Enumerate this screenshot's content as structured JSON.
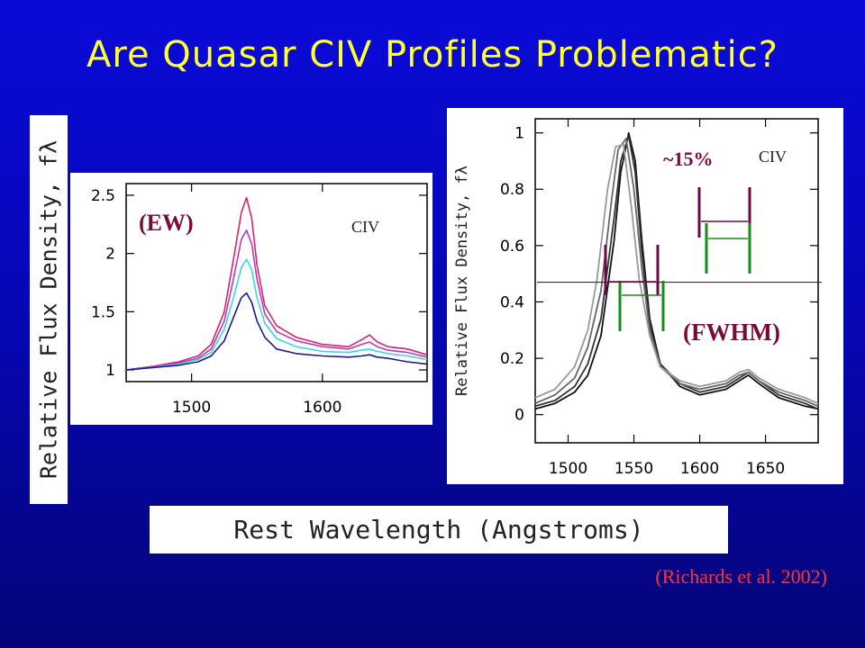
{
  "slide": {
    "title": "Are Quasar CIV Profiles Problematic?",
    "citation": "(Richards et al. 2002)",
    "shared_ylabel": "Relative Flux Density, fλ",
    "shared_xlabel": "Rest Wavelength (Angstroms)"
  },
  "colors": {
    "background": "#0707b8",
    "title": "#ffff33",
    "annotation": "#7a0a3a",
    "citation": "#ff3333",
    "marker_green": "#1a8a1a",
    "marker_purple": "#6a0a4a"
  },
  "chart_data": [
    {
      "type": "line",
      "title": "",
      "annotation": "(EW)",
      "line_label": "CIV",
      "xlabel": "",
      "ylabel": "",
      "xlim": [
        1450,
        1680
      ],
      "ylim": [
        0.9,
        2.6
      ],
      "xticks": [
        1500,
        1600
      ],
      "yticks": [
        1,
        1.5,
        2,
        2.5
      ],
      "ytick_labels": [
        "1",
        "1.5",
        "2",
        "2.5"
      ],
      "series": [
        {
          "color": "#e0206a",
          "x": [
            1450,
            1470,
            1490,
            1505,
            1515,
            1525,
            1532,
            1538,
            1542,
            1546,
            1550,
            1556,
            1565,
            1580,
            1600,
            1620,
            1630,
            1636,
            1642,
            1650,
            1665,
            1680
          ],
          "y": [
            1.0,
            1.03,
            1.07,
            1.12,
            1.22,
            1.5,
            1.95,
            2.35,
            2.48,
            2.3,
            1.9,
            1.55,
            1.38,
            1.28,
            1.22,
            1.2,
            1.26,
            1.3,
            1.24,
            1.2,
            1.18,
            1.13
          ]
        },
        {
          "color": "#b83ab8",
          "x": [
            1450,
            1470,
            1490,
            1505,
            1515,
            1525,
            1532,
            1538,
            1542,
            1546,
            1550,
            1556,
            1565,
            1580,
            1600,
            1620,
            1630,
            1636,
            1642,
            1650,
            1665,
            1680
          ],
          "y": [
            1.0,
            1.03,
            1.06,
            1.1,
            1.18,
            1.42,
            1.78,
            2.12,
            2.2,
            2.08,
            1.78,
            1.48,
            1.33,
            1.25,
            1.2,
            1.18,
            1.22,
            1.24,
            1.2,
            1.17,
            1.15,
            1.11
          ]
        },
        {
          "color": "#3ad8d8",
          "x": [
            1450,
            1470,
            1490,
            1505,
            1515,
            1525,
            1532,
            1538,
            1542,
            1546,
            1550,
            1556,
            1565,
            1580,
            1600,
            1620,
            1630,
            1636,
            1642,
            1650,
            1665,
            1680
          ],
          "y": [
            1.0,
            1.02,
            1.05,
            1.09,
            1.15,
            1.35,
            1.62,
            1.88,
            1.95,
            1.86,
            1.62,
            1.4,
            1.27,
            1.2,
            1.16,
            1.15,
            1.17,
            1.18,
            1.16,
            1.14,
            1.12,
            1.09
          ]
        },
        {
          "color": "#1a1a8a",
          "x": [
            1450,
            1470,
            1490,
            1505,
            1515,
            1525,
            1532,
            1538,
            1542,
            1546,
            1550,
            1556,
            1565,
            1580,
            1600,
            1620,
            1630,
            1636,
            1642,
            1650,
            1665,
            1680
          ],
          "y": [
            1.0,
            1.02,
            1.04,
            1.07,
            1.12,
            1.25,
            1.45,
            1.62,
            1.66,
            1.58,
            1.42,
            1.28,
            1.18,
            1.14,
            1.12,
            1.11,
            1.12,
            1.13,
            1.11,
            1.1,
            1.07,
            1.05
          ]
        }
      ]
    },
    {
      "type": "line",
      "title": "",
      "annotation": "(FWHM)",
      "percent_label": "~15%",
      "line_label": "CIV",
      "xlabel": "",
      "ylabel": "Relative Flux Density, fλ",
      "xlim": [
        1475,
        1690
      ],
      "ylim": [
        -0.1,
        1.05
      ],
      "xticks": [
        1500,
        1550,
        1600,
        1650
      ],
      "yticks": [
        0,
        0.2,
        0.4,
        0.6,
        0.8,
        1
      ],
      "ytick_labels": [
        "0",
        "0.2",
        "0.4",
        "0.6",
        "0.8",
        "1"
      ],
      "half_max_level": 0.47,
      "series": [
        {
          "color": "#111111",
          "x": [
            1475,
            1490,
            1505,
            1515,
            1525,
            1535,
            1540,
            1546,
            1551,
            1556,
            1562,
            1570,
            1585,
            1600,
            1620,
            1630,
            1637,
            1645,
            1660,
            1680,
            1690
          ],
          "y": [
            0.02,
            0.04,
            0.08,
            0.14,
            0.28,
            0.62,
            0.86,
            1.0,
            0.9,
            0.62,
            0.34,
            0.18,
            0.1,
            0.07,
            0.09,
            0.12,
            0.14,
            0.11,
            0.06,
            0.03,
            0.02
          ]
        },
        {
          "color": "#333333",
          "x": [
            1475,
            1490,
            1505,
            1515,
            1525,
            1535,
            1540,
            1546,
            1551,
            1556,
            1562,
            1570,
            1585,
            1600,
            1620,
            1630,
            1637,
            1645,
            1660,
            1680,
            1690
          ],
          "y": [
            0.03,
            0.05,
            0.1,
            0.18,
            0.34,
            0.7,
            0.9,
            0.99,
            0.86,
            0.58,
            0.32,
            0.18,
            0.11,
            0.08,
            0.1,
            0.13,
            0.15,
            0.12,
            0.07,
            0.04,
            0.02
          ]
        },
        {
          "color": "#666666",
          "x": [
            1475,
            1490,
            1505,
            1515,
            1525,
            1533,
            1538,
            1544,
            1550,
            1556,
            1562,
            1570,
            1585,
            1600,
            1620,
            1630,
            1637,
            1645,
            1660,
            1680,
            1690
          ],
          "y": [
            0.04,
            0.07,
            0.13,
            0.24,
            0.44,
            0.76,
            0.94,
            0.98,
            0.8,
            0.52,
            0.3,
            0.17,
            0.11,
            0.09,
            0.11,
            0.14,
            0.15,
            0.12,
            0.08,
            0.05,
            0.03
          ]
        },
        {
          "color": "#999999",
          "x": [
            1475,
            1490,
            1505,
            1515,
            1522,
            1530,
            1536,
            1542,
            1548,
            1554,
            1562,
            1570,
            1585,
            1600,
            1620,
            1630,
            1637,
            1645,
            1660,
            1680,
            1690
          ],
          "y": [
            0.06,
            0.09,
            0.17,
            0.3,
            0.48,
            0.8,
            0.95,
            0.96,
            0.74,
            0.48,
            0.28,
            0.17,
            0.12,
            0.1,
            0.12,
            0.15,
            0.16,
            0.13,
            0.09,
            0.06,
            0.04
          ]
        }
      ]
    }
  ]
}
